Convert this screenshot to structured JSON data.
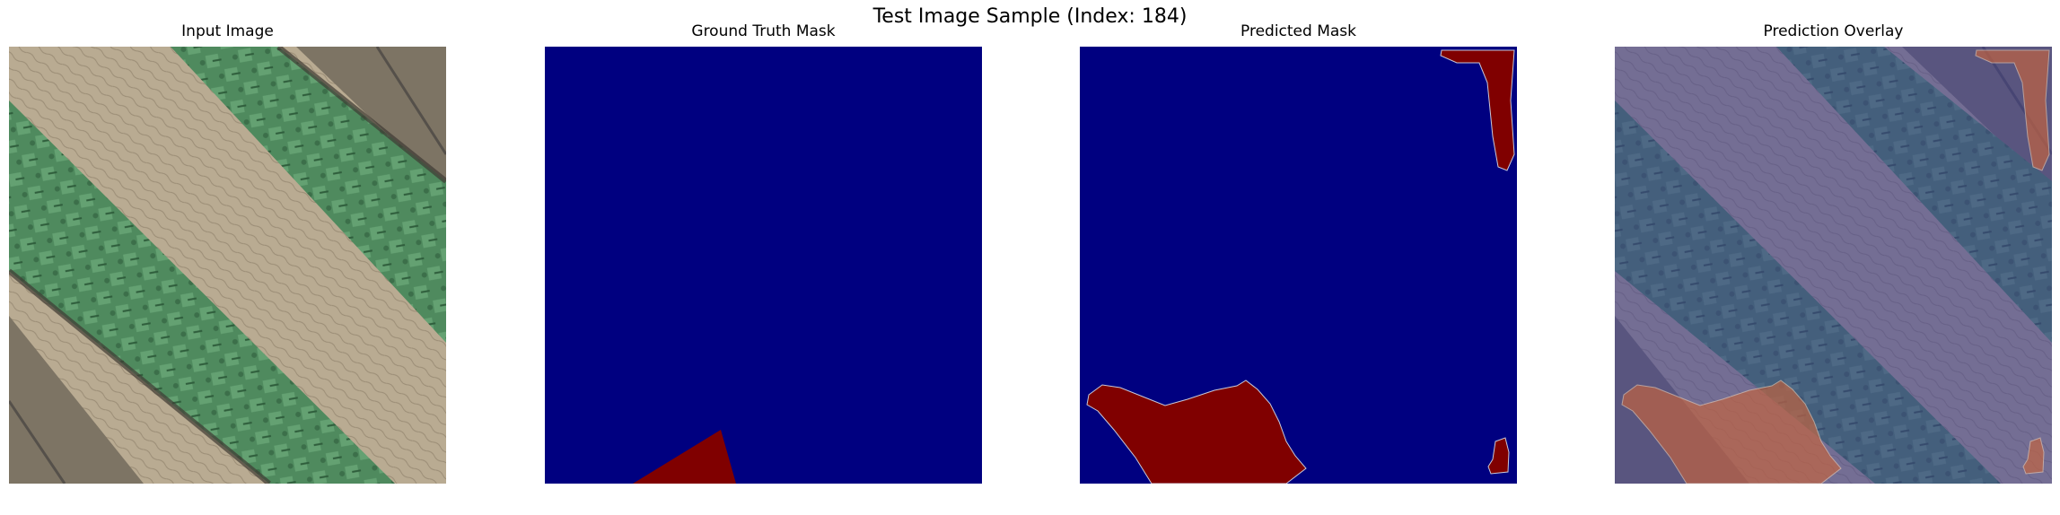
{
  "figure": {
    "title": "Test Image Sample (Index: 184)"
  },
  "panels": {
    "input": {
      "title": "Input Image"
    },
    "ground_truth": {
      "title": "Ground Truth Mask"
    },
    "predicted": {
      "title": "Predicted Mask"
    },
    "overlay": {
      "title": "Prediction Overlay"
    }
  },
  "colors": {
    "background_class": "#000080",
    "foreground_class": "#800000",
    "soil": "#b9ab92",
    "crop": "#4f8a5e",
    "crop_dark": "#2f5e3c",
    "shadow": "#3e3a33",
    "overlay_tint": "#3c3c96",
    "overlay_mask": "#c8643c"
  }
}
